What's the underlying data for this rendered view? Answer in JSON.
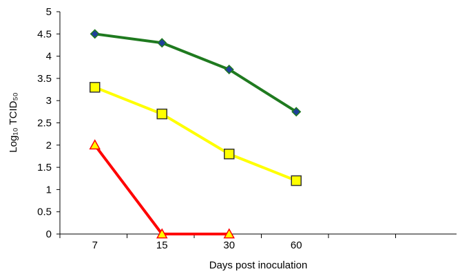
{
  "chart_data": {
    "type": "line",
    "categories": [
      "7",
      "15",
      "30",
      "60"
    ],
    "xlabel": "Days post inoculation",
    "ylabel": "Log₁₀ TCID₅₀",
    "ylim": [
      0,
      5
    ],
    "yticks": [
      "0",
      "0.5",
      "1",
      "1.5",
      "2",
      "2.5",
      "3",
      "3.5",
      "4",
      "4.5",
      "5"
    ],
    "grid": false,
    "legend": "none",
    "series": [
      {
        "color": "#1f7a1f",
        "marker": "diamond",
        "marker_fill": "#1f3f99",
        "values": [
          4.5,
          4.3,
          3.7,
          2.75
        ]
      },
      {
        "color": "#ffff00",
        "marker": "square",
        "marker_fill": "#ffff00",
        "values": [
          3.3,
          2.7,
          1.8,
          1.2
        ]
      },
      {
        "color": "#ff0000",
        "marker": "triangle",
        "marker_fill": "#ff0000",
        "values": [
          2.0,
          0,
          0,
          null
        ]
      }
    ]
  }
}
